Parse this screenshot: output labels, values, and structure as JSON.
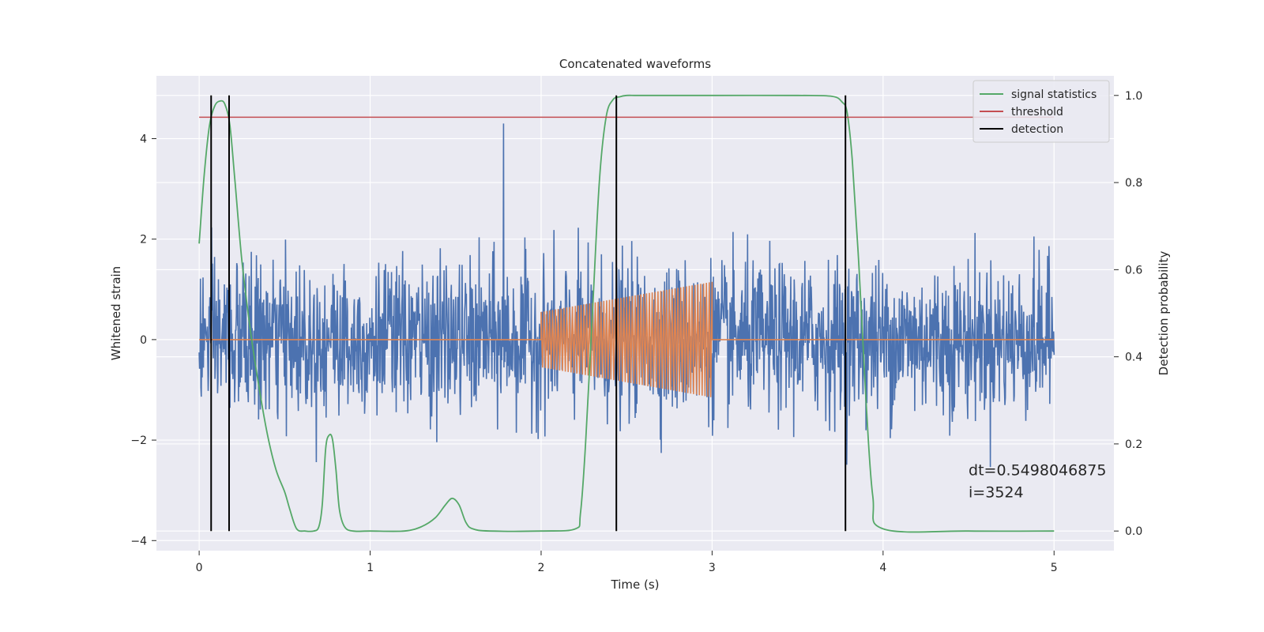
{
  "chart_data": {
    "type": "line",
    "title": "Concatenated waveforms",
    "xlabel": "Time (s)",
    "ylabel": "Whitened strain",
    "y2label": "Detection probability",
    "xlim": [
      -0.25,
      5.35
    ],
    "ylim": [
      -4.2,
      5.25
    ],
    "y2lim": [
      -0.045,
      1.045
    ],
    "xticks": [
      0,
      1,
      2,
      3,
      4,
      5
    ],
    "xtick_labels": [
      "0",
      "1",
      "2",
      "3",
      "4",
      "5"
    ],
    "yticks": [
      -4,
      -2,
      0,
      2,
      4
    ],
    "ytick_labels": [
      "−4",
      "−2",
      "0",
      "2",
      "4"
    ],
    "y2ticks": [
      0.0,
      0.2,
      0.4,
      0.6,
      0.8,
      1.0
    ],
    "y2tick_labels": [
      "0.0",
      "0.2",
      "0.4",
      "0.6",
      "0.8",
      "1.0"
    ],
    "grid": true,
    "legend_position": "top-right",
    "colors": {
      "background": "#eaeaf2",
      "grid": "#ffffff",
      "strain": "#4c72b0",
      "template": "#dd8452",
      "signal_statistics": "#55a868",
      "threshold": "#c44e52",
      "detection": "#000000"
    },
    "series": [
      {
        "name": "signal statistics",
        "axis": "right",
        "x": [
          0.0,
          0.03,
          0.06,
          0.09,
          0.12,
          0.15,
          0.18,
          0.21,
          0.25,
          0.3,
          0.35,
          0.4,
          0.45,
          0.5,
          0.53,
          0.57,
          0.62,
          0.67,
          0.7,
          0.72,
          0.74,
          0.76,
          0.78,
          0.8,
          0.82,
          0.85,
          0.9,
          1.0,
          1.2,
          1.3,
          1.38,
          1.44,
          1.48,
          1.52,
          1.56,
          1.6,
          1.7,
          2.0,
          2.2,
          2.23,
          2.26,
          2.3,
          2.34,
          2.38,
          2.42,
          2.46,
          2.5,
          2.56,
          2.7,
          3.0,
          3.5,
          3.7,
          3.76,
          3.79,
          3.82,
          3.86,
          3.9,
          3.94,
          4.0,
          4.5,
          5.0
        ],
        "y": [
          0.66,
          0.82,
          0.93,
          0.975,
          0.987,
          0.98,
          0.93,
          0.8,
          0.62,
          0.46,
          0.33,
          0.22,
          0.14,
          0.09,
          0.05,
          0.005,
          0.0,
          0.0,
          0.01,
          0.06,
          0.19,
          0.22,
          0.21,
          0.14,
          0.05,
          0.01,
          0.0,
          0.0,
          0.0,
          0.01,
          0.03,
          0.06,
          0.075,
          0.06,
          0.02,
          0.005,
          0.0,
          0.0,
          0.005,
          0.04,
          0.2,
          0.5,
          0.8,
          0.95,
          0.99,
          0.997,
          1.0,
          1.0,
          1.0,
          1.0,
          1.0,
          0.998,
          0.985,
          0.96,
          0.85,
          0.6,
          0.3,
          0.08,
          0.005,
          0.0,
          0.0
        ]
      },
      {
        "name": "threshold",
        "axis": "right",
        "x": [
          0.0,
          5.0
        ],
        "y": [
          0.95,
          0.95
        ]
      },
      {
        "name": "detection",
        "axis": "right",
        "type": "vlines",
        "x": [
          0.07,
          0.175,
          2.44,
          3.78
        ],
        "ymin": 0.0,
        "ymax": 1.0
      },
      {
        "axis": "left",
        "kind": "noise",
        "x_range": [
          0.0,
          5.0
        ],
        "samples": 2000,
        "sigma": 0.75,
        "max_abs": 4.3,
        "peak_x": 1.78,
        "peak_y": 4.3
      },
      {
        "axis": "left",
        "kind": "chirp",
        "x": [
          0.0,
          2.0,
          2.0,
          3.0,
          3.0,
          5.0
        ],
        "envelope": [
          0.0,
          0.0,
          0.55,
          1.15,
          0.0,
          0.0
        ],
        "cycles": 60
      }
    ],
    "annotation": {
      "lines": [
        "dt=0.5498046875",
        " i=3524"
      ],
      "x": 4.5,
      "y": -2.7
    }
  }
}
